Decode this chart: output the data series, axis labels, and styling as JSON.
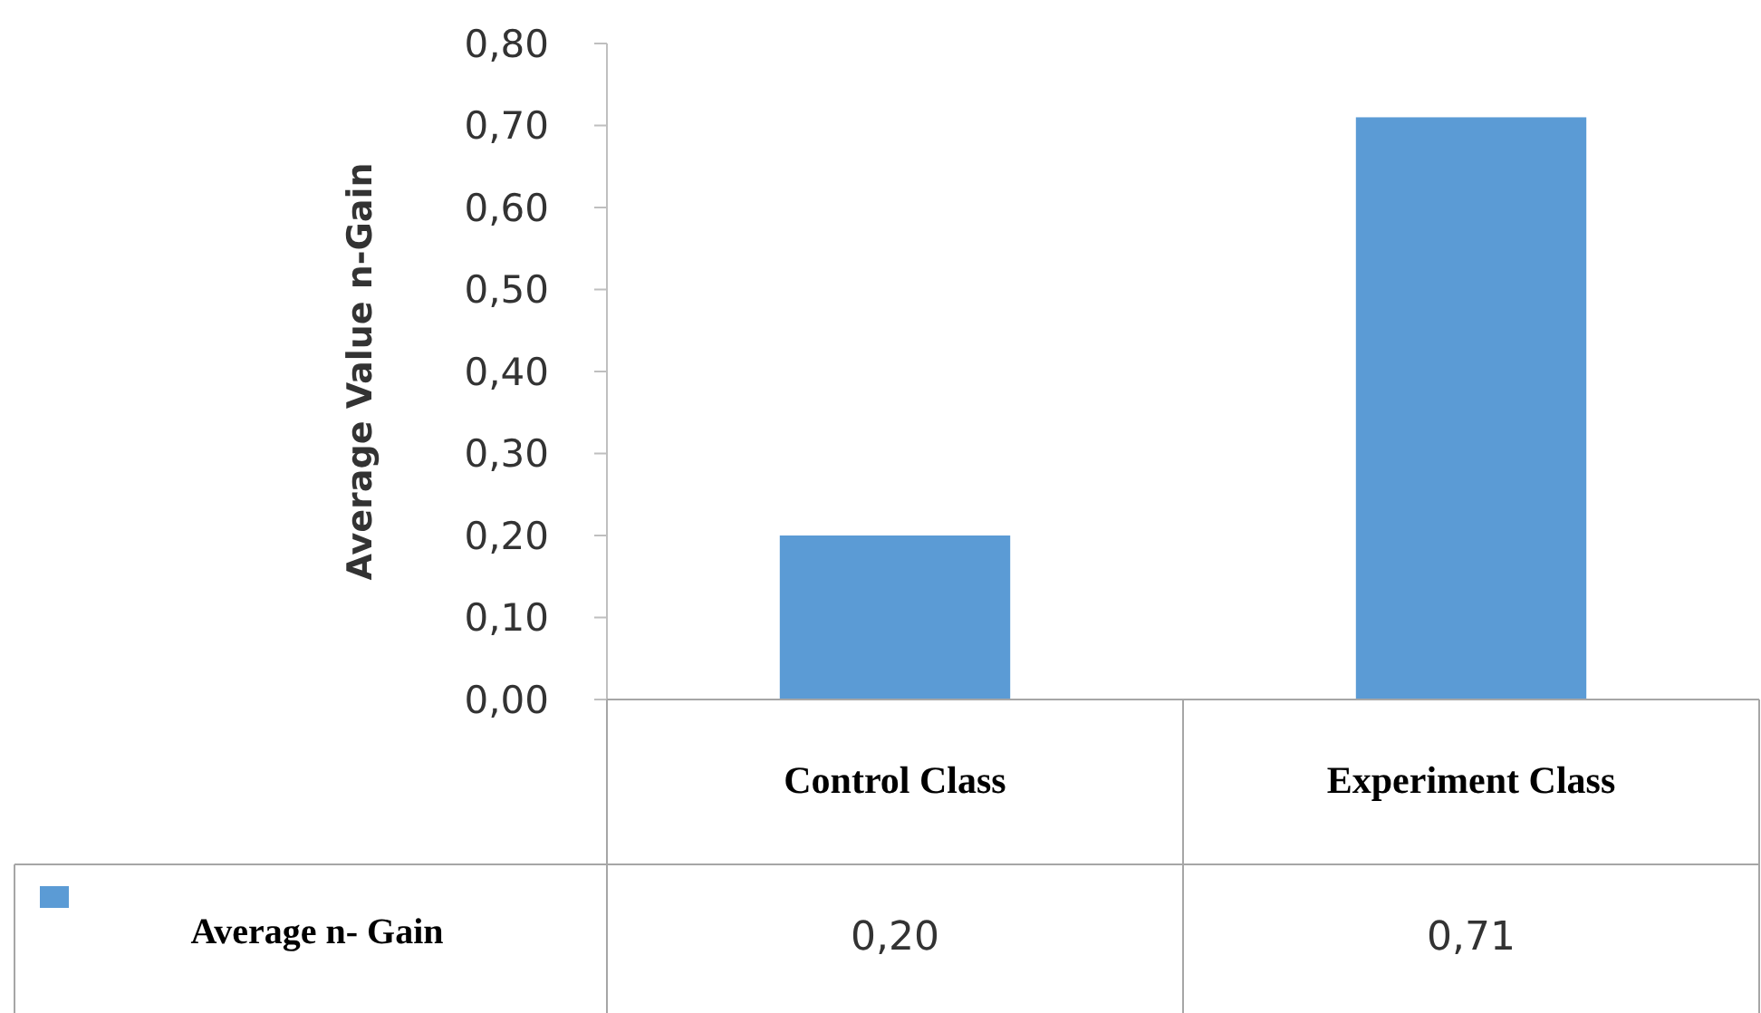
{
  "chart_data": {
    "type": "bar",
    "ylabel": "Average Value n-Gain",
    "categories": [
      "Control Class",
      "Experiment Class"
    ],
    "series": [
      {
        "name": "Average n- Gain",
        "color": "#5b9bd5",
        "values": [
          0.2,
          0.71
        ],
        "value_labels": [
          "0,20",
          "0,71"
        ]
      }
    ],
    "ylim": [
      0,
      0.8
    ],
    "yticks": [
      {
        "value": 0,
        "label": "0,00"
      },
      {
        "value": 0.1,
        "label": "0,10"
      },
      {
        "value": 0.2,
        "label": "0,20"
      },
      {
        "value": 0.3,
        "label": "0,30"
      },
      {
        "value": 0.4,
        "label": "0,40"
      },
      {
        "value": 0.5,
        "label": "0,50"
      },
      {
        "value": 0.6,
        "label": "0,60"
      },
      {
        "value": 0.7,
        "label": "0,70"
      },
      {
        "value": 0.8,
        "label": "0,80"
      }
    ],
    "grid": false,
    "legend": "bottom left"
  }
}
